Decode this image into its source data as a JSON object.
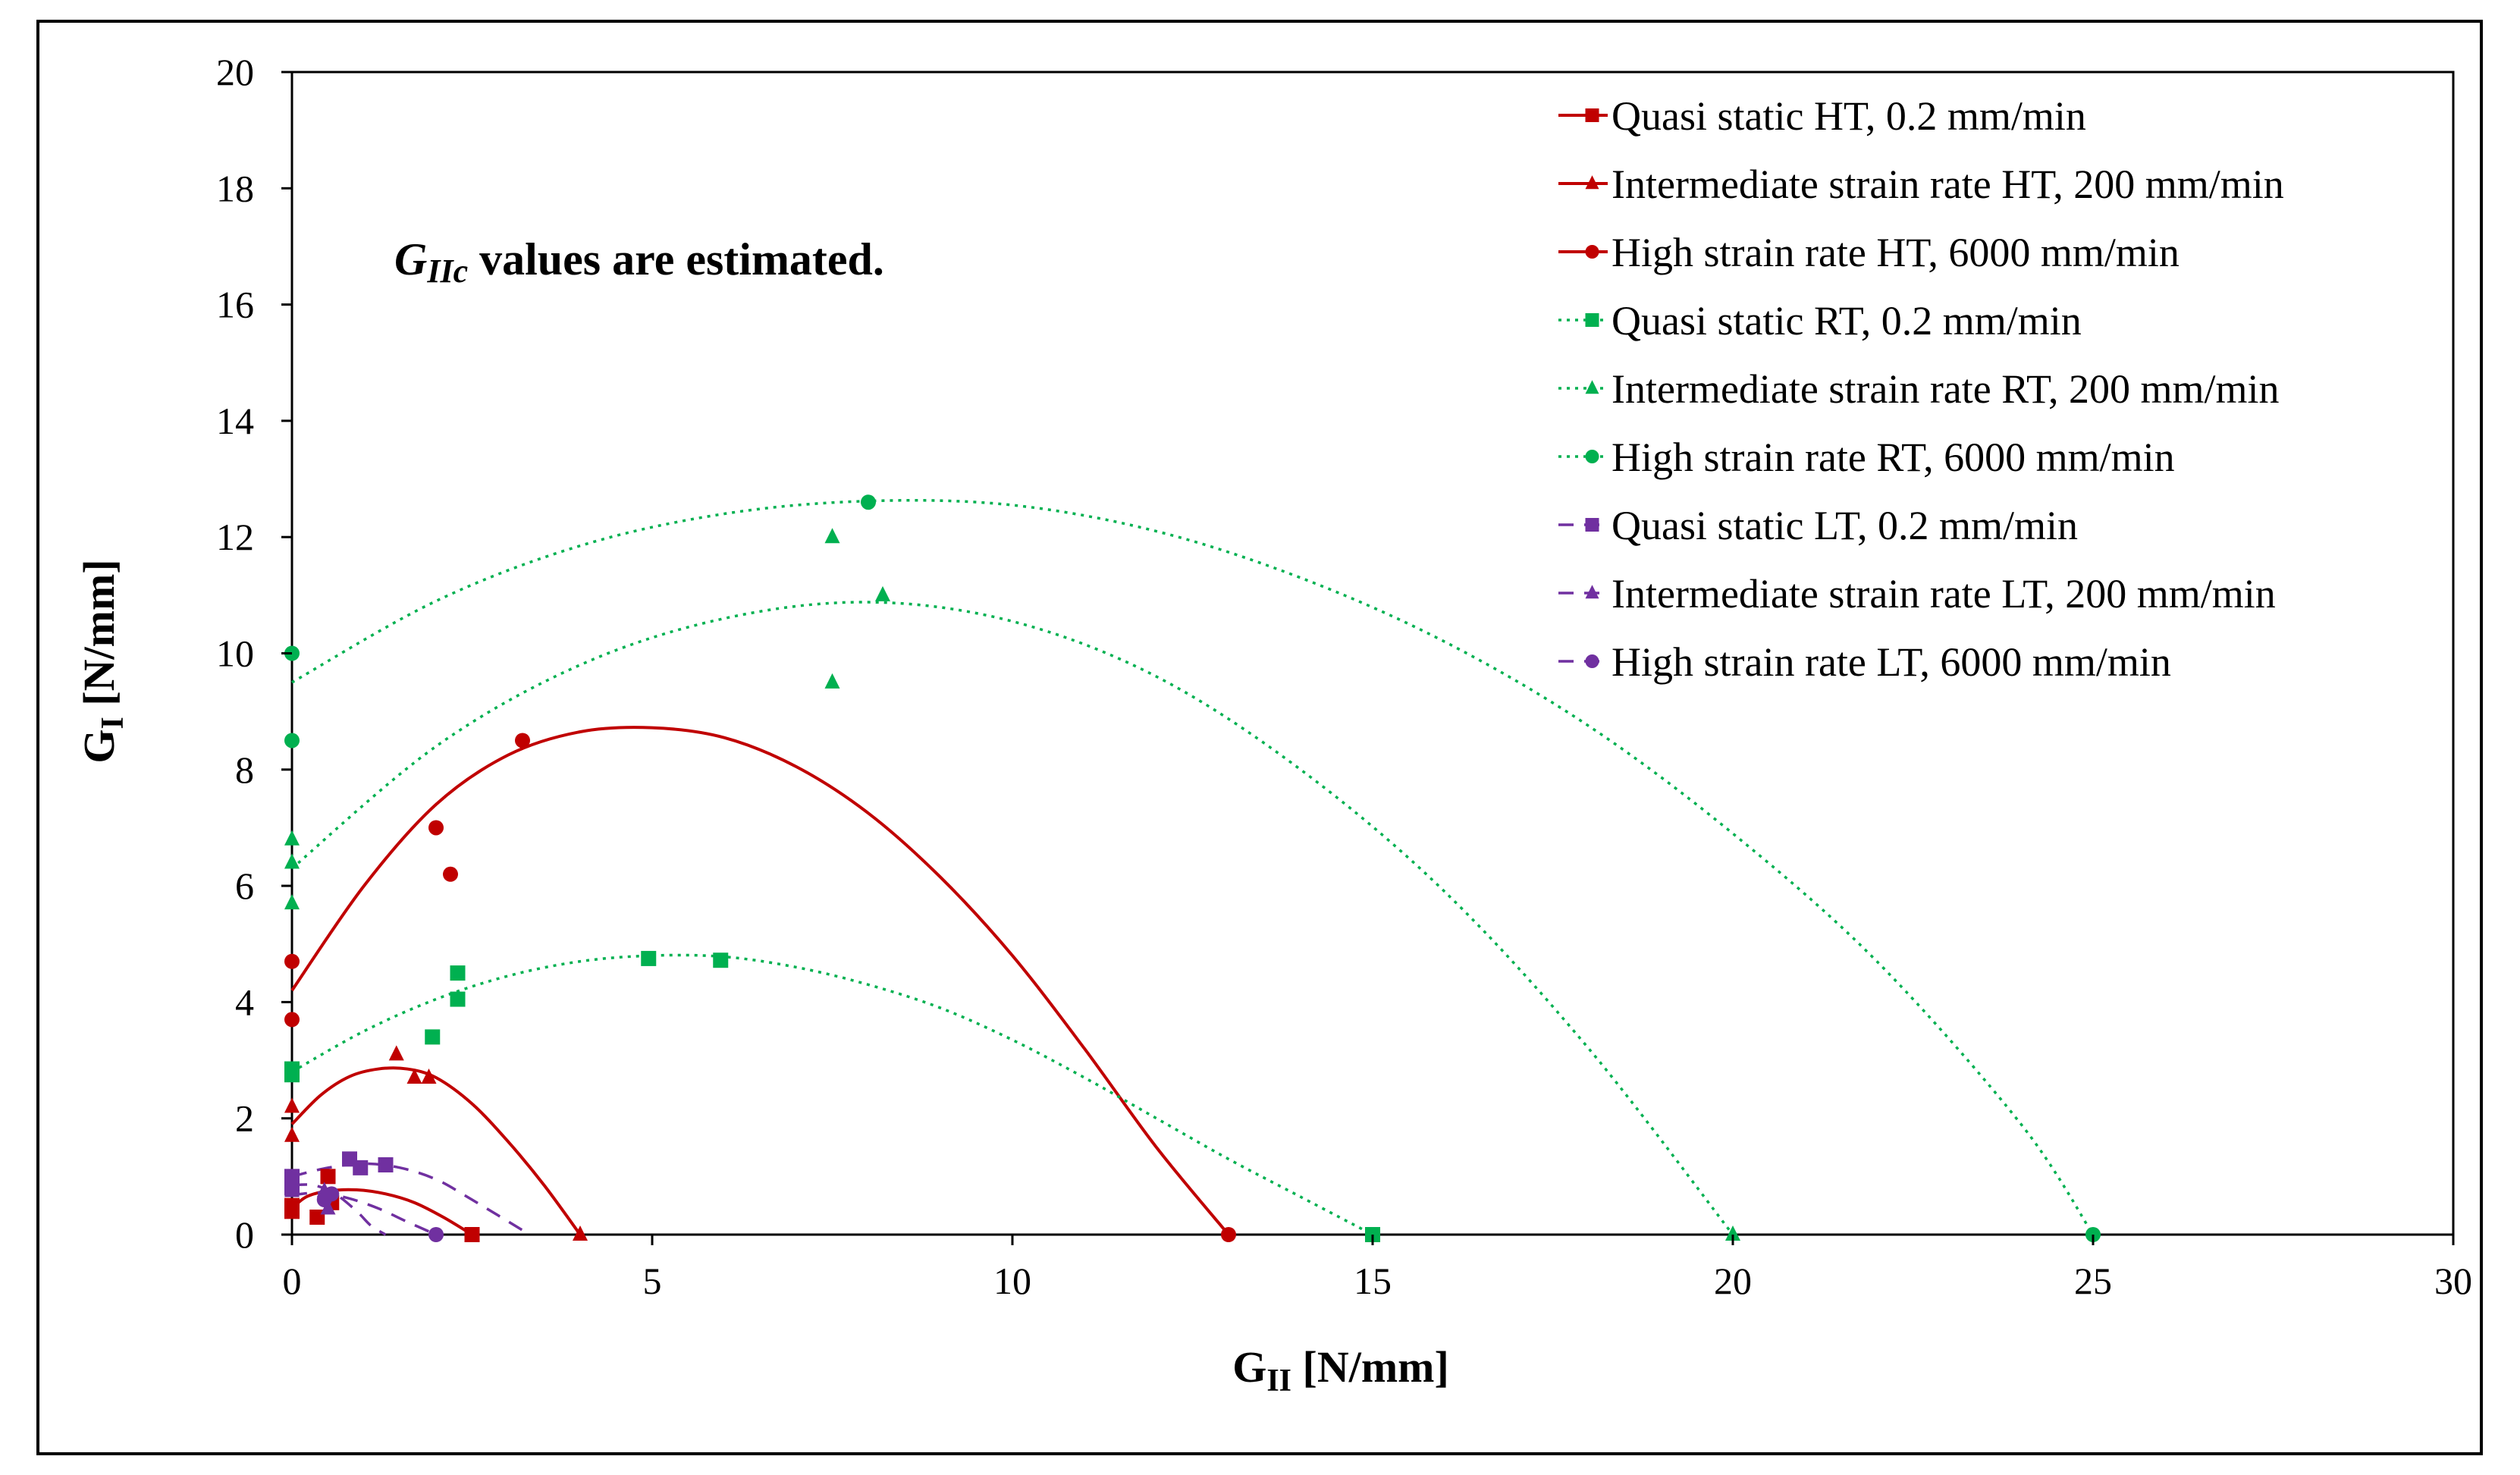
{
  "chart_data": {
    "type": "scatter",
    "title": "",
    "xlabel": "G_II [N/mm]",
    "ylabel": "G_I [N/mm]",
    "xlabel_main": "G",
    "xlabel_sub": "II",
    "xlabel_unit": " [N/mm]",
    "ylabel_main": "G",
    "ylabel_sub": "I",
    "ylabel_unit": " [N/mm]",
    "xlim": [
      0,
      30
    ],
    "ylim": [
      0,
      20
    ],
    "xticks": [
      0,
      5,
      10,
      15,
      20,
      25,
      30
    ],
    "yticks": [
      0,
      2,
      4,
      6,
      8,
      10,
      12,
      14,
      16,
      18,
      20
    ],
    "grid": false,
    "legend_position": "top-right",
    "annotation": {
      "main": "G",
      "sub": "IIc",
      "rest": " values are estimated."
    },
    "colors": {
      "HT": "#c00000",
      "RT": "#00b050",
      "LT": "#7030a0"
    },
    "series": [
      {
        "name": "Quasi static HT, 0.2 mm/min",
        "group": "HT",
        "marker": "square",
        "line": "solid",
        "points": [
          [
            0,
            0.4
          ],
          [
            0,
            0.5
          ],
          [
            0.35,
            0.3
          ],
          [
            0.5,
            1.0
          ],
          [
            0.55,
            0.55
          ],
          [
            2.5,
            0
          ]
        ],
        "curve": [
          [
            0,
            0.45
          ],
          [
            0.2,
            0.65
          ],
          [
            0.5,
            0.75
          ],
          [
            0.9,
            0.77
          ],
          [
            1.3,
            0.7
          ],
          [
            1.7,
            0.55
          ],
          [
            2.1,
            0.3
          ],
          [
            2.5,
            0
          ]
        ]
      },
      {
        "name": "Intermediate strain rate HT, 200 mm/min",
        "group": "HT",
        "marker": "triangle",
        "line": "solid",
        "points": [
          [
            0,
            1.7
          ],
          [
            0,
            2.2
          ],
          [
            1.45,
            3.1
          ],
          [
            1.7,
            2.7
          ],
          [
            1.9,
            2.7
          ],
          [
            4,
            0
          ]
        ],
        "curve": [
          [
            0,
            1.9
          ],
          [
            0.4,
            2.4
          ],
          [
            0.8,
            2.72
          ],
          [
            1.2,
            2.85
          ],
          [
            1.6,
            2.85
          ],
          [
            2.0,
            2.7
          ],
          [
            2.5,
            2.25
          ],
          [
            3.0,
            1.6
          ],
          [
            3.5,
            0.85
          ],
          [
            4,
            0
          ]
        ]
      },
      {
        "name": "High strain rate HT, 6000 mm/min",
        "group": "HT",
        "marker": "circle",
        "line": "solid",
        "points": [
          [
            0,
            3.7
          ],
          [
            0,
            4.7
          ],
          [
            2.0,
            7.0
          ],
          [
            2.2,
            6.2
          ],
          [
            3.2,
            8.5
          ],
          [
            13,
            0
          ]
        ],
        "curve": [
          [
            0,
            4.2
          ],
          [
            1,
            6.0
          ],
          [
            2,
            7.4
          ],
          [
            3,
            8.25
          ],
          [
            4,
            8.65
          ],
          [
            5,
            8.72
          ],
          [
            6,
            8.55
          ],
          [
            7,
            8.05
          ],
          [
            8,
            7.25
          ],
          [
            9,
            6.15
          ],
          [
            10,
            4.8
          ],
          [
            11,
            3.2
          ],
          [
            12,
            1.5
          ],
          [
            13,
            0
          ]
        ]
      },
      {
        "name": "Quasi static RT, 0.2 mm/min",
        "group": "RT",
        "marker": "square",
        "line": "dotted",
        "points": [
          [
            0,
            2.75
          ],
          [
            0,
            2.85
          ],
          [
            1.95,
            3.4
          ],
          [
            2.3,
            4.05
          ],
          [
            2.3,
            4.5
          ],
          [
            4.95,
            4.75
          ],
          [
            5.95,
            4.72
          ],
          [
            15,
            0
          ]
        ],
        "curve": [
          [
            0,
            2.8
          ],
          [
            1,
            3.5
          ],
          [
            2,
            4.05
          ],
          [
            3,
            4.45
          ],
          [
            4,
            4.7
          ],
          [
            5,
            4.8
          ],
          [
            6,
            4.78
          ],
          [
            7,
            4.6
          ],
          [
            8,
            4.3
          ],
          [
            9,
            3.9
          ],
          [
            10,
            3.35
          ],
          [
            11,
            2.7
          ],
          [
            12,
            2.0
          ],
          [
            13,
            1.3
          ],
          [
            14,
            0.65
          ],
          [
            15,
            0
          ]
        ]
      },
      {
        "name": "Intermediate strain rate RT, 200 mm/min",
        "group": "RT",
        "marker": "triangle",
        "line": "dotted",
        "points": [
          [
            0,
            5.7
          ],
          [
            0,
            6.4
          ],
          [
            0,
            6.8
          ],
          [
            7.5,
            9.5
          ],
          [
            7.5,
            12.0
          ],
          [
            8.2,
            11.0
          ],
          [
            20,
            0
          ]
        ],
        "curve": [
          [
            0,
            6.3
          ],
          [
            2,
            8.4
          ],
          [
            4,
            9.8
          ],
          [
            6,
            10.6
          ],
          [
            8,
            10.88
          ],
          [
            10,
            10.55
          ],
          [
            12,
            9.6
          ],
          [
            14,
            8.0
          ],
          [
            16,
            5.9
          ],
          [
            18,
            3.2
          ],
          [
            20,
            0
          ]
        ]
      },
      {
        "name": "High strain rate RT, 6000 mm/min",
        "group": "RT",
        "marker": "circle",
        "line": "dotted",
        "points": [
          [
            0,
            8.5
          ],
          [
            0,
            10.0
          ],
          [
            8.0,
            12.6
          ],
          [
            25,
            0
          ]
        ],
        "curve": [
          [
            0,
            9.5
          ],
          [
            2,
            10.9
          ],
          [
            4,
            11.85
          ],
          [
            6,
            12.4
          ],
          [
            8,
            12.62
          ],
          [
            10,
            12.55
          ],
          [
            12,
            12.1
          ],
          [
            14,
            11.3
          ],
          [
            16,
            10.2
          ],
          [
            18,
            8.75
          ],
          [
            20,
            6.9
          ],
          [
            22,
            4.7
          ],
          [
            24,
            1.9
          ],
          [
            25,
            0
          ]
        ]
      },
      {
        "name": "Quasi static LT, 0.2 mm/min",
        "group": "LT",
        "marker": "square",
        "line": "dashed",
        "points": [
          [
            0,
            0.8
          ],
          [
            0,
            1.0
          ],
          [
            0.8,
            1.3
          ],
          [
            0.95,
            1.15
          ],
          [
            1.3,
            1.2
          ]
        ],
        "curve": [
          [
            0,
            1.0
          ],
          [
            0.5,
            1.15
          ],
          [
            1.0,
            1.22
          ],
          [
            1.5,
            1.15
          ],
          [
            2.0,
            0.95
          ],
          [
            2.5,
            0.6
          ],
          [
            3.3,
            0
          ]
        ]
      },
      {
        "name": "Intermediate strain rate LT, 200 mm/min",
        "group": "LT",
        "marker": "triangle",
        "line": "dashed",
        "points": [
          [
            0,
            0.75
          ],
          [
            0.45,
            0.75
          ],
          [
            0.5,
            0.45
          ]
        ],
        "curve": [
          [
            0,
            0.85
          ],
          [
            0.3,
            0.85
          ],
          [
            0.6,
            0.7
          ],
          [
            0.9,
            0.4
          ],
          [
            1.1,
            0.15
          ],
          [
            1.3,
            0
          ]
        ]
      },
      {
        "name": "High strain rate LT, 6000 mm/min",
        "group": "LT",
        "marker": "circle",
        "line": "dashed",
        "points": [
          [
            0,
            0.8
          ],
          [
            0.45,
            0.6
          ],
          [
            0.55,
            0.7
          ],
          [
            2.0,
            0
          ]
        ],
        "curve": [
          [
            0,
            0.68
          ],
          [
            0.4,
            0.72
          ],
          [
            0.8,
            0.62
          ],
          [
            1.2,
            0.45
          ],
          [
            1.6,
            0.22
          ],
          [
            2.0,
            0
          ]
        ]
      }
    ]
  }
}
